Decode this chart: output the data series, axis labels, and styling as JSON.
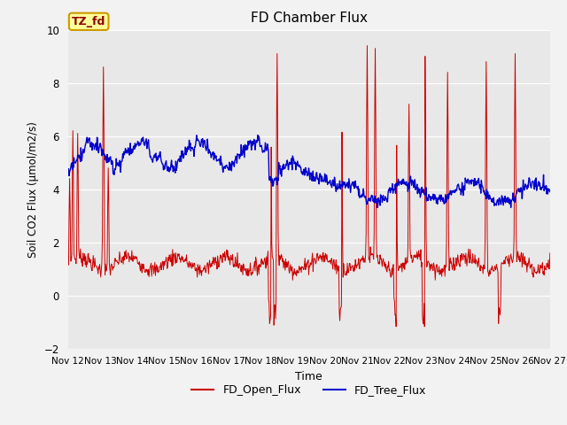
{
  "title": "FD Chamber Flux",
  "xlabel": "Time",
  "ylabel": "Soil CO2 Flux (μmol/m2/s)",
  "ylim": [
    -2,
    10
  ],
  "yticks": [
    -2,
    0,
    2,
    4,
    6,
    8,
    10
  ],
  "xtick_labels": [
    "Nov 12",
    "Nov 13",
    "Nov 14",
    "Nov 15",
    "Nov 16",
    "Nov 17",
    "Nov 18",
    "Nov 19",
    "Nov 20",
    "Nov 21",
    "Nov 22",
    "Nov 23",
    "Nov 24",
    "Nov 25",
    "Nov 26",
    "Nov 27"
  ],
  "open_flux_color": "#cc0000",
  "tree_flux_color": "#0000cc",
  "annotation_text": "TZ_fd",
  "annotation_bg": "#ffff99",
  "annotation_border": "#cc9900",
  "fig_bg_color": "#f2f2f2",
  "plot_bg_color": "#e8e8e8",
  "legend_open": "FD_Open_Flux",
  "legend_tree": "FD_Tree_Flux",
  "grid_color": "#ffffff",
  "seed": 7
}
